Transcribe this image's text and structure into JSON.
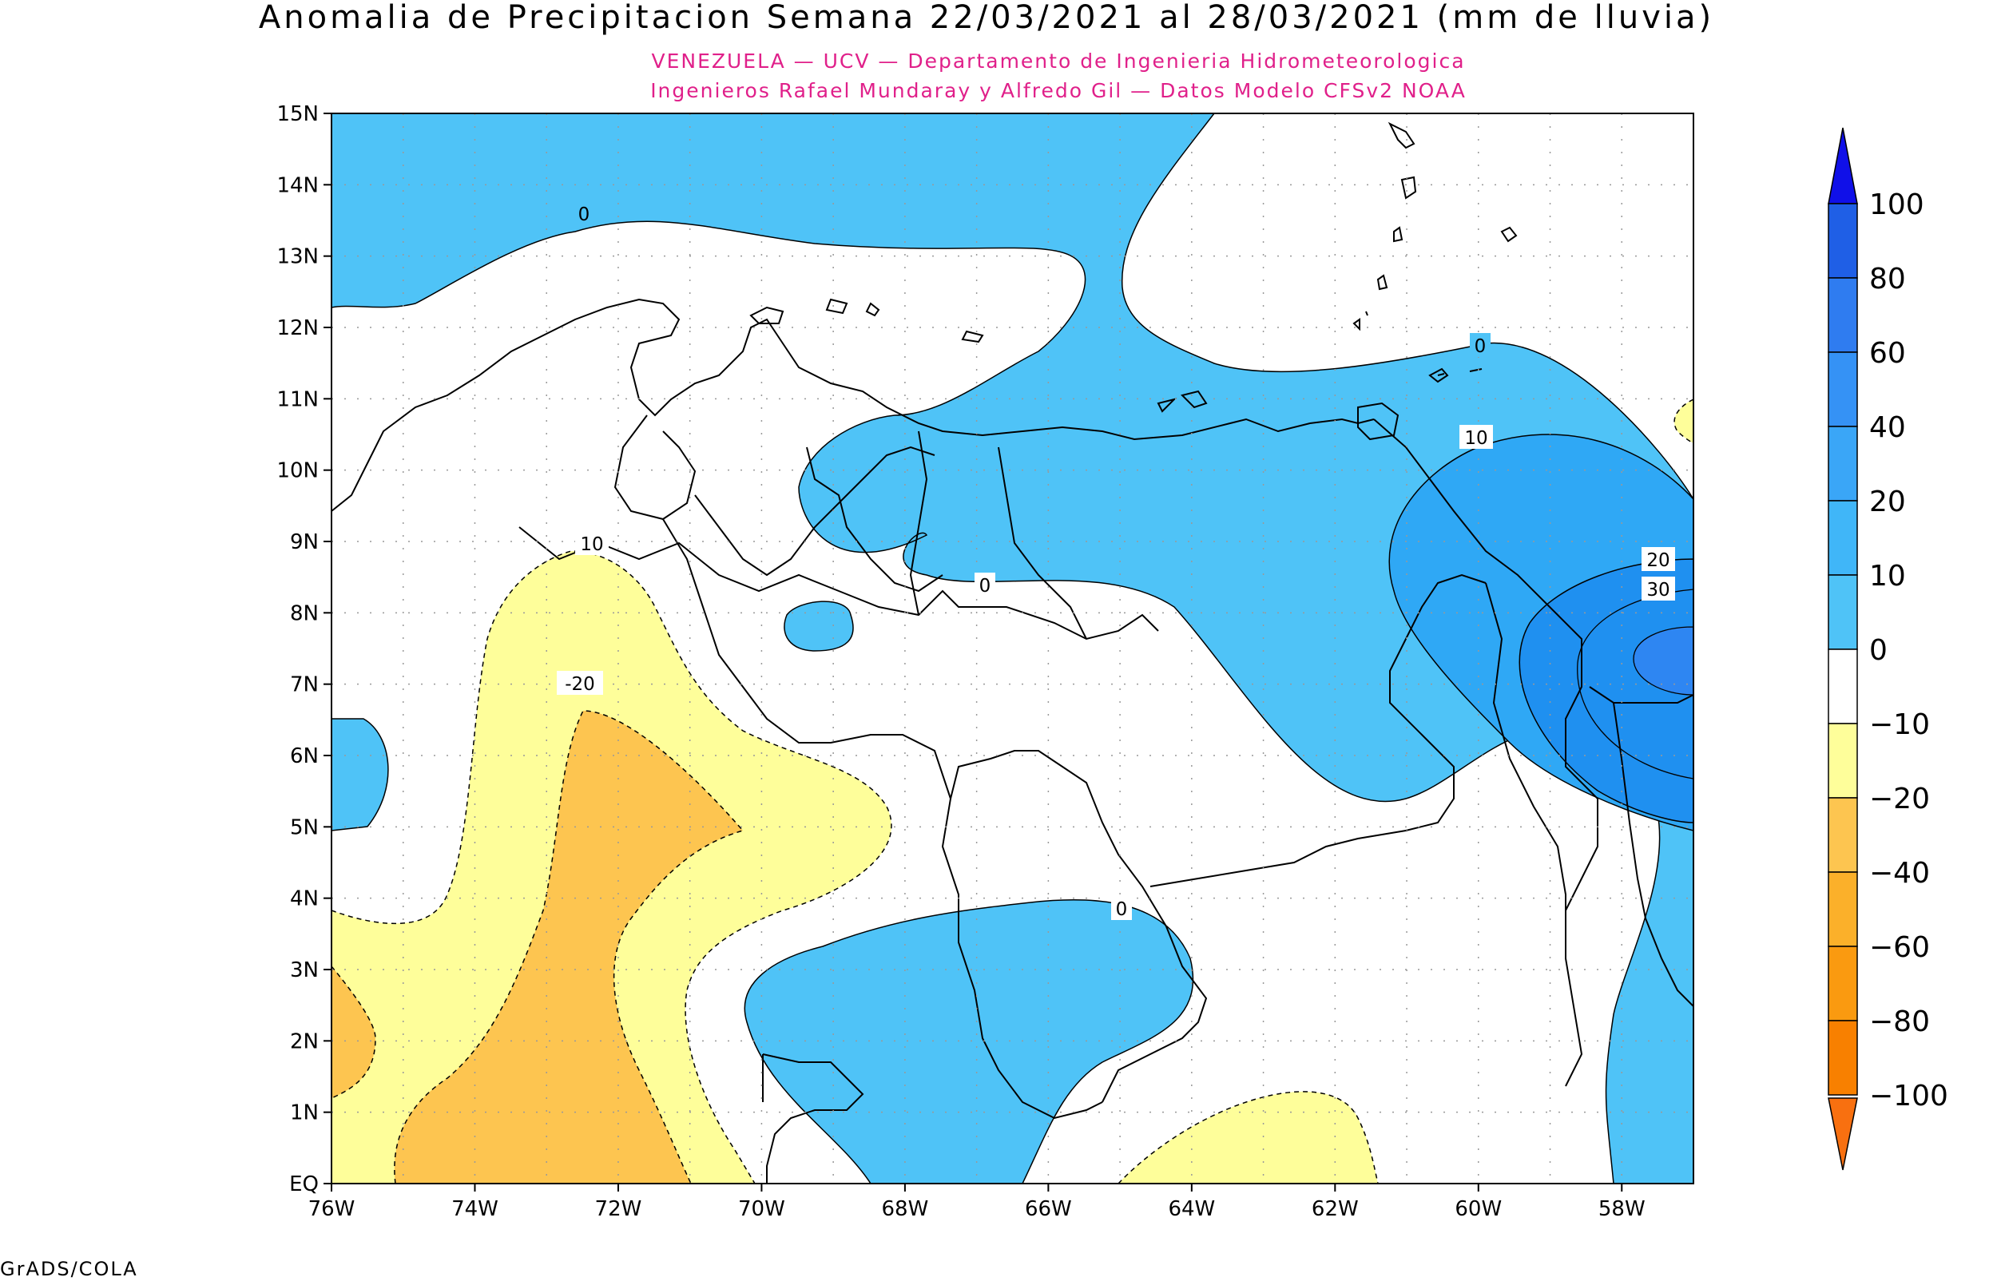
{
  "title": "Anomalia de Precipitacion Semana 22/03/2021 al 28/03/2021 (mm de lluvia)",
  "subtitle_line1": "VENEZUELA — UCV — Departamento de Ingenieria Hidrometeorologica",
  "subtitle_line2": "Ingenieros Rafael Mundaray y Alfredo Gil — Datos Modelo CFSv2 NOAA",
  "footer": "GrADS/COLA",
  "map": {
    "lon_range": [
      -76,
      -57
    ],
    "lat_range": [
      0,
      15
    ],
    "lat_ticks": [
      "15N",
      "14N",
      "13N",
      "12N",
      "11N",
      "10N",
      "9N",
      "8N",
      "7N",
      "6N",
      "5N",
      "4N",
      "3N",
      "2N",
      "1N",
      "EQ"
    ],
    "lon_ticks": [
      "76W",
      "74W",
      "72W",
      "70W",
      "68W",
      "66W",
      "64W",
      "62W",
      "60W",
      "58W"
    ],
    "contour_labels": [
      "0",
      "0",
      "0",
      "0",
      "10",
      "10",
      "20",
      "30",
      "-20"
    ]
  },
  "colorbar": {
    "labels": [
      "100",
      "80",
      "60",
      "40",
      "20",
      "10",
      "0",
      "-10",
      "-20",
      "-40",
      "-60",
      "-80",
      "-100"
    ],
    "colors": [
      "#1f5fe6",
      "#2f7cf0",
      "#3592f5",
      "#3aa6f7",
      "#40b6f8",
      "#4fc3f7",
      "#ffffff",
      "#ffffff",
      "#fefe9a",
      "#fdc550",
      "#fbb02a",
      "#fa9a10",
      "#f88000"
    ],
    "top_arrow_color": "#1010e8",
    "bottom_arrow_color": "#f87010"
  },
  "palette": {
    "positive_0_10": "#4fc3f7",
    "positive_10_20": "#2fa8f5",
    "positive_20_40": "#1f90f0",
    "negative_10_20": "#fefe9a",
    "negative_20_40": "#fdc550"
  }
}
